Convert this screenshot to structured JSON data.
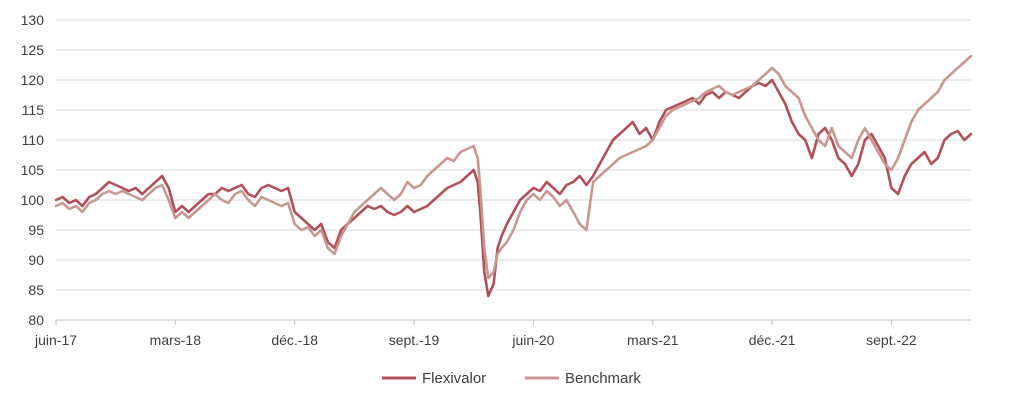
{
  "chart_data": {
    "type": "line",
    "title": "",
    "xlabel": "",
    "ylabel": "",
    "ylim": [
      80,
      130
    ],
    "yticks": [
      80,
      85,
      90,
      95,
      100,
      105,
      110,
      115,
      120,
      125,
      130
    ],
    "x_tick_labels": [
      "juin-17",
      "mars-18",
      "déc.-18",
      "sept.-19",
      "juin-20",
      "mars-21",
      "déc.-21",
      "sept.-22"
    ],
    "x_tick_months": [
      0,
      9,
      18,
      27,
      36,
      45,
      54,
      63
    ],
    "x_range_months": [
      0,
      69
    ],
    "grid": "horizontal",
    "legend": "bottom",
    "series": [
      {
        "name": "Flexivalor",
        "color": "#b0505a",
        "points": [
          [
            0,
            100
          ],
          [
            0.5,
            100.5
          ],
          [
            1,
            99.5
          ],
          [
            1.5,
            100
          ],
          [
            2,
            99
          ],
          [
            2.5,
            100.5
          ],
          [
            3,
            101
          ],
          [
            3.5,
            102
          ],
          [
            4,
            103
          ],
          [
            4.5,
            102.5
          ],
          [
            5,
            102
          ],
          [
            5.5,
            101.5
          ],
          [
            6,
            102
          ],
          [
            6.5,
            101
          ],
          [
            7,
            102
          ],
          [
            7.5,
            103
          ],
          [
            8,
            104
          ],
          [
            8.5,
            102
          ],
          [
            9,
            98
          ],
          [
            9.5,
            99
          ],
          [
            10,
            98
          ],
          [
            10.5,
            99
          ],
          [
            11,
            100
          ],
          [
            11.5,
            101
          ],
          [
            12,
            101
          ],
          [
            12.5,
            102
          ],
          [
            13,
            101.5
          ],
          [
            13.5,
            102
          ],
          [
            14,
            102.5
          ],
          [
            14.5,
            101
          ],
          [
            15,
            100.5
          ],
          [
            15.5,
            102
          ],
          [
            16,
            102.5
          ],
          [
            16.5,
            102
          ],
          [
            17,
            101.5
          ],
          [
            17.5,
            102
          ],
          [
            18,
            98
          ],
          [
            18.5,
            97
          ],
          [
            19,
            96
          ],
          [
            19.5,
            95
          ],
          [
            20,
            96
          ],
          [
            20.5,
            93
          ],
          [
            21,
            92
          ],
          [
            21.5,
            95
          ],
          [
            22,
            96
          ],
          [
            22.5,
            97
          ],
          [
            23,
            98
          ],
          [
            23.5,
            99
          ],
          [
            24,
            98.5
          ],
          [
            24.5,
            99
          ],
          [
            25,
            98
          ],
          [
            25.5,
            97.5
          ],
          [
            26,
            98
          ],
          [
            26.5,
            99
          ],
          [
            27,
            98
          ],
          [
            27.5,
            98.5
          ],
          [
            28,
            99
          ],
          [
            28.5,
            100
          ],
          [
            29,
            101
          ],
          [
            29.5,
            102
          ],
          [
            30,
            102.5
          ],
          [
            30.5,
            103
          ],
          [
            31,
            104
          ],
          [
            31.5,
            105
          ],
          [
            31.8,
            103
          ],
          [
            32,
            98
          ],
          [
            32.3,
            88
          ],
          [
            32.6,
            84
          ],
          [
            33,
            86
          ],
          [
            33.3,
            92
          ],
          [
            33.6,
            94
          ],
          [
            34,
            96
          ],
          [
            34.5,
            98
          ],
          [
            35,
            100
          ],
          [
            35.5,
            101
          ],
          [
            36,
            102
          ],
          [
            36.5,
            101.5
          ],
          [
            37,
            103
          ],
          [
            37.5,
            102
          ],
          [
            38,
            101
          ],
          [
            38.5,
            102.5
          ],
          [
            39,
            103
          ],
          [
            39.5,
            104
          ],
          [
            40,
            102.5
          ],
          [
            40.5,
            104
          ],
          [
            41,
            106
          ],
          [
            41.5,
            108
          ],
          [
            42,
            110
          ],
          [
            42.5,
            111
          ],
          [
            43,
            112
          ],
          [
            43.5,
            113
          ],
          [
            44,
            111
          ],
          [
            44.5,
            112
          ],
          [
            45,
            110
          ],
          [
            45.5,
            113
          ],
          [
            46,
            115
          ],
          [
            46.5,
            115.5
          ],
          [
            47,
            116
          ],
          [
            47.5,
            116.5
          ],
          [
            48,
            117
          ],
          [
            48.5,
            116
          ],
          [
            49,
            117.5
          ],
          [
            49.5,
            118
          ],
          [
            50,
            117
          ],
          [
            50.5,
            118
          ],
          [
            51,
            117.5
          ],
          [
            51.5,
            117
          ],
          [
            52,
            118
          ],
          [
            52.5,
            119
          ],
          [
            53,
            119.5
          ],
          [
            53.5,
            119
          ],
          [
            54,
            120
          ],
          [
            54.5,
            118
          ],
          [
            55,
            116
          ],
          [
            55.5,
            113
          ],
          [
            56,
            111
          ],
          [
            56.5,
            110
          ],
          [
            57,
            107
          ],
          [
            57.5,
            111
          ],
          [
            58,
            112
          ],
          [
            58.5,
            110
          ],
          [
            59,
            107
          ],
          [
            59.5,
            106
          ],
          [
            60,
            104
          ],
          [
            60.5,
            106
          ],
          [
            61,
            110
          ],
          [
            61.5,
            111
          ],
          [
            62,
            109
          ],
          [
            62.5,
            107
          ],
          [
            63,
            102
          ],
          [
            63.5,
            101
          ],
          [
            64,
            104
          ],
          [
            64.5,
            106
          ],
          [
            65,
            107
          ],
          [
            65.5,
            108
          ],
          [
            66,
            106
          ],
          [
            66.5,
            107
          ],
          [
            67,
            110
          ],
          [
            67.5,
            111
          ],
          [
            68,
            111.5
          ],
          [
            68.5,
            110
          ],
          [
            69,
            111
          ]
        ]
      },
      {
        "name": "Benchmark",
        "color": "#c89890",
        "points": [
          [
            0,
            99
          ],
          [
            0.5,
            99.5
          ],
          [
            1,
            98.5
          ],
          [
            1.5,
            99
          ],
          [
            2,
            98
          ],
          [
            2.5,
            99.5
          ],
          [
            3,
            100
          ],
          [
            3.5,
            101
          ],
          [
            4,
            101.5
          ],
          [
            4.5,
            101
          ],
          [
            5,
            101.5
          ],
          [
            5.5,
            101
          ],
          [
            6,
            100.5
          ],
          [
            6.5,
            100
          ],
          [
            7,
            101
          ],
          [
            7.5,
            102
          ],
          [
            8,
            102.5
          ],
          [
            8.5,
            100
          ],
          [
            9,
            97
          ],
          [
            9.5,
            98
          ],
          [
            10,
            97
          ],
          [
            10.5,
            98
          ],
          [
            11,
            99
          ],
          [
            11.5,
            100
          ],
          [
            12,
            101
          ],
          [
            12.5,
            100
          ],
          [
            13,
            99.5
          ],
          [
            13.5,
            101
          ],
          [
            14,
            101.5
          ],
          [
            14.5,
            100
          ],
          [
            15,
            99
          ],
          [
            15.5,
            100.5
          ],
          [
            16,
            100
          ],
          [
            16.5,
            99.5
          ],
          [
            17,
            99
          ],
          [
            17.5,
            99.5
          ],
          [
            18,
            96
          ],
          [
            18.5,
            95
          ],
          [
            19,
            95.5
          ],
          [
            19.5,
            94
          ],
          [
            20,
            95
          ],
          [
            20.5,
            92
          ],
          [
            21,
            91
          ],
          [
            21.5,
            94
          ],
          [
            22,
            96
          ],
          [
            22.5,
            98
          ],
          [
            23,
            99
          ],
          [
            23.5,
            100
          ],
          [
            24,
            101
          ],
          [
            24.5,
            102
          ],
          [
            25,
            101
          ],
          [
            25.5,
            100
          ],
          [
            26,
            101
          ],
          [
            26.5,
            103
          ],
          [
            27,
            102
          ],
          [
            27.5,
            102.5
          ],
          [
            28,
            104
          ],
          [
            28.5,
            105
          ],
          [
            29,
            106
          ],
          [
            29.5,
            107
          ],
          [
            30,
            106.5
          ],
          [
            30.5,
            108
          ],
          [
            31,
            108.5
          ],
          [
            31.5,
            109
          ],
          [
            31.8,
            107
          ],
          [
            32,
            102
          ],
          [
            32.3,
            92
          ],
          [
            32.6,
            87
          ],
          [
            33,
            88
          ],
          [
            33.3,
            91
          ],
          [
            33.6,
            92
          ],
          [
            34,
            93
          ],
          [
            34.5,
            95
          ],
          [
            35,
            98
          ],
          [
            35.5,
            100
          ],
          [
            36,
            101
          ],
          [
            36.5,
            100
          ],
          [
            37,
            101.5
          ],
          [
            37.5,
            100.5
          ],
          [
            38,
            99
          ],
          [
            38.5,
            100
          ],
          [
            39,
            98
          ],
          [
            39.5,
            96
          ],
          [
            40,
            95
          ],
          [
            40.5,
            103
          ],
          [
            41,
            104
          ],
          [
            41.5,
            105
          ],
          [
            42,
            106
          ],
          [
            42.5,
            107
          ],
          [
            43,
            107.5
          ],
          [
            43.5,
            108
          ],
          [
            44,
            108.5
          ],
          [
            44.5,
            109
          ],
          [
            45,
            110
          ],
          [
            45.5,
            112
          ],
          [
            46,
            114
          ],
          [
            46.5,
            115
          ],
          [
            47,
            115.5
          ],
          [
            47.5,
            116
          ],
          [
            48,
            116.5
          ],
          [
            48.5,
            117
          ],
          [
            49,
            118
          ],
          [
            49.5,
            118.5
          ],
          [
            50,
            119
          ],
          [
            50.5,
            118
          ],
          [
            51,
            117.5
          ],
          [
            51.5,
            118
          ],
          [
            52,
            118.5
          ],
          [
            52.5,
            119
          ],
          [
            53,
            120
          ],
          [
            53.5,
            121
          ],
          [
            54,
            122
          ],
          [
            54.5,
            121
          ],
          [
            55,
            119
          ],
          [
            55.5,
            118
          ],
          [
            56,
            117
          ],
          [
            56.5,
            114
          ],
          [
            57,
            112
          ],
          [
            57.5,
            110
          ],
          [
            58,
            109
          ],
          [
            58.5,
            112
          ],
          [
            59,
            109
          ],
          [
            59.5,
            108
          ],
          [
            60,
            107
          ],
          [
            60.5,
            110
          ],
          [
            61,
            112
          ],
          [
            61.5,
            110
          ],
          [
            62,
            108
          ],
          [
            62.5,
            106
          ],
          [
            63,
            105
          ],
          [
            63.5,
            107
          ],
          [
            64,
            110
          ],
          [
            64.5,
            113
          ],
          [
            65,
            115
          ],
          [
            65.5,
            116
          ],
          [
            66,
            117
          ],
          [
            66.5,
            118
          ],
          [
            67,
            120
          ],
          [
            67.5,
            121
          ],
          [
            68,
            122
          ],
          [
            68.5,
            123
          ],
          [
            69,
            124
          ]
        ]
      }
    ]
  }
}
